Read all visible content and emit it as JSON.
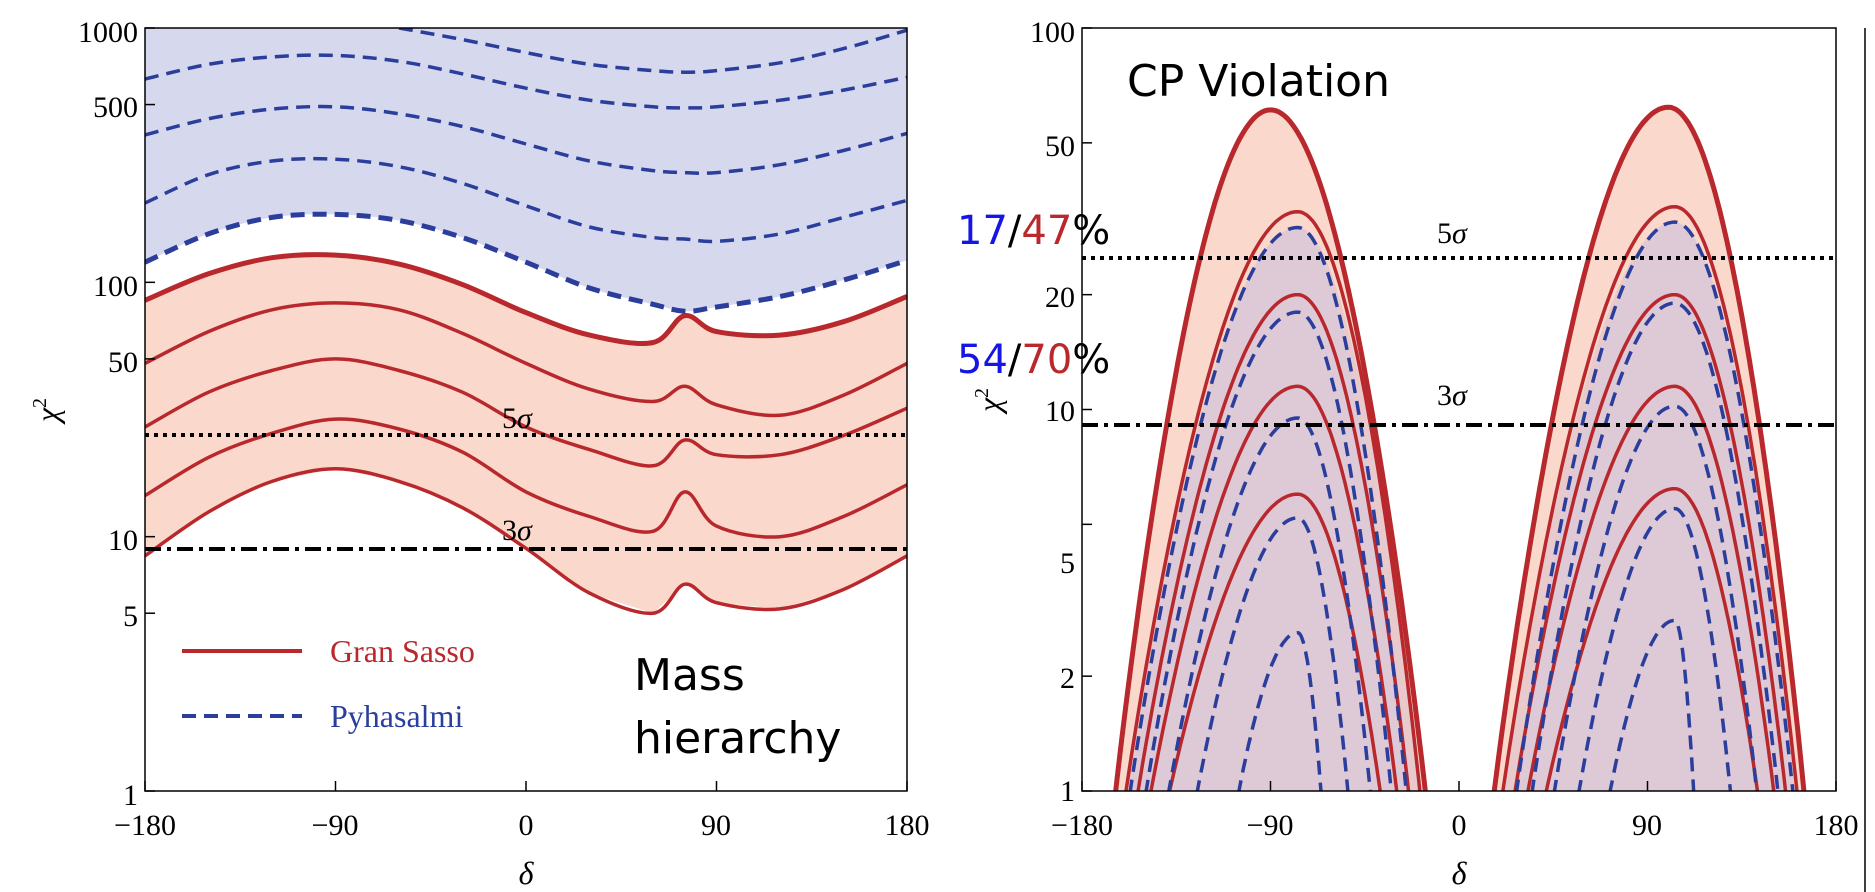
{
  "colors": {
    "red": "#B8282C",
    "blue": "#2B3E9C",
    "red_fill": "#FAD8CB",
    "blue_fill": "#D6D9EE",
    "overlap_fill": "#D9C0D0",
    "pct_blue": "#1515E6",
    "pct_red": "#B8282C"
  },
  "annotations": {
    "mass_hierarchy_line1": "Mass",
    "mass_hierarchy_line2": "hierarchy",
    "cp_violation": "CP Violation",
    "pct_top_blue": "17",
    "pct_top_slash": "/",
    "pct_top_red": "47",
    "pct_top_sign": "%",
    "pct_mid_blue": "54",
    "pct_mid_slash": "/",
    "pct_mid_red": "70",
    "pct_mid_sign": "%"
  },
  "chart_data": [
    {
      "type": "line",
      "subtitle_note": "Mass hierarchy",
      "xlabel": "δ",
      "ylabel": "χ²",
      "xlim": [
        -180,
        180
      ],
      "ylim": [
        1,
        1000
      ],
      "yscale": "log",
      "x_ticks": [
        "−180",
        "−90",
        "0",
        "90",
        "180"
      ],
      "y_ticks": [
        "1",
        "5",
        "10",
        "50",
        "100",
        "500",
        "1000"
      ],
      "legend": {
        "placement": "bottom-left",
        "entries": [
          {
            "label": "Gran Sasso",
            "style": "solid",
            "color": "#B8282C"
          },
          {
            "label": "Pyhasalmi",
            "style": "dashed",
            "color": "#2B3E9C"
          }
        ]
      },
      "reference_lines": [
        {
          "label": "5σ",
          "y": 25,
          "style": "dotted"
        },
        {
          "label": "3σ",
          "y": 9,
          "style": "dash-dot"
        }
      ],
      "x": [
        -180,
        -150,
        -120,
        -90,
        -60,
        -30,
        0,
        30,
        60,
        75,
        90,
        120,
        150,
        180
      ],
      "series": [
        {
          "name": "Gran Sasso",
          "style": "solid",
          "values": [
            85,
            108,
            125,
            128,
            118,
            98,
            76,
            62,
            58,
            74,
            64,
            62,
            70,
            88
          ]
        },
        {
          "name": "Gran Sasso",
          "style": "solid",
          "values": [
            48,
            64,
            78,
            83,
            78,
            63,
            48,
            38,
            34,
            39,
            33,
            30,
            36,
            48
          ]
        },
        {
          "name": "Gran Sasso",
          "style": "solid",
          "values": [
            27,
            37,
            45,
            50,
            45,
            37,
            27,
            22,
            19,
            24,
            21,
            21,
            25,
            32
          ]
        },
        {
          "name": "Gran Sasso",
          "style": "solid",
          "values": [
            14.5,
            20.5,
            25.5,
            29,
            26.5,
            21.5,
            15,
            12,
            10.5,
            15,
            11,
            10,
            12,
            16
          ]
        },
        {
          "name": "Gran Sasso",
          "style": "solid",
          "values": [
            8.4,
            12.5,
            16.5,
            18.5,
            16.5,
            13,
            9,
            6,
            5,
            6.5,
            5.5,
            5.2,
            6.2,
            8.4
          ]
        },
        {
          "name": "Pyhasalmi",
          "style": "dashed",
          "values": [
            120,
            155,
            180,
            185,
            175,
            150,
            120,
            95,
            82,
            77,
            80,
            88,
            102,
            122
          ]
        },
        {
          "name": "Pyhasalmi",
          "style": "dashed",
          "values": [
            205,
            265,
            300,
            305,
            285,
            245,
            200,
            165,
            150,
            148,
            145,
            155,
            180,
            210
          ]
        },
        {
          "name": "Pyhasalmi",
          "style": "dashed",
          "values": [
            380,
            440,
            480,
            490,
            460,
            410,
            350,
            300,
            275,
            270,
            270,
            290,
            330,
            385
          ]
        },
        {
          "name": "Pyhasalmi",
          "style": "dashed",
          "values": [
            630,
            720,
            770,
            780,
            740,
            660,
            580,
            520,
            490,
            485,
            490,
            520,
            570,
            640
          ]
        },
        {
          "name": "Pyhasalmi",
          "style": "dashed",
          "values": [
            null,
            null,
            null,
            null,
            1000,
            900,
            800,
            720,
            680,
            670,
            680,
            730,
            830,
            980
          ]
        }
      ]
    },
    {
      "type": "line",
      "title": "CP Violation",
      "xlabel": "δ",
      "ylabel": "χ²",
      "xlim": [
        -180,
        180
      ],
      "ylim": [
        1,
        100
      ],
      "yscale": "log",
      "x_ticks": [
        "−180",
        "−90",
        "0",
        "90",
        "180"
      ],
      "y_ticks": [
        "1",
        "2",
        "5",
        "10",
        "20",
        "50",
        "100"
      ],
      "reference_lines": [
        {
          "label": "5σ",
          "y": 25,
          "style": "dotted"
        },
        {
          "label": "3σ",
          "y": 9,
          "style": "dash-dot"
        }
      ],
      "series": [
        {
          "name": "Gran Sasso",
          "style": "solid",
          "left_zero": [
            -170,
            -10
          ],
          "left_peak": [
            -90,
            61
          ],
          "right_zero": [
            10,
            170
          ],
          "right_peak": [
            100,
            62
          ]
        },
        {
          "name": "Gran Sasso",
          "style": "solid",
          "left_zero": [
            -167,
            -13
          ],
          "left_peak": [
            -77,
            33
          ],
          "right_zero": [
            13,
            167
          ],
          "right_peak": [
            103,
            34
          ]
        },
        {
          "name": "Gran Sasso",
          "style": "solid",
          "left_zero": [
            -162,
            -18
          ],
          "left_peak": [
            -77,
            20
          ],
          "right_zero": [
            18,
            162
          ],
          "right_peak": [
            103,
            20
          ]
        },
        {
          "name": "Gran Sasso",
          "style": "solid",
          "left_zero": [
            -157,
            -23
          ],
          "left_peak": [
            -77,
            11.5
          ],
          "right_zero": [
            23,
            157
          ],
          "right_peak": [
            103,
            11.5
          ]
        },
        {
          "name": "Gran Sasso",
          "style": "solid",
          "left_zero": [
            -150,
            -30
          ],
          "left_peak": [
            -77,
            6
          ],
          "right_zero": [
            30,
            150
          ],
          "right_peak": [
            103,
            6.2
          ]
        },
        {
          "name": "Pyhasalmi",
          "style": "dashed",
          "left_zero": [
            -165,
            -20
          ],
          "left_peak": [
            -77,
            30
          ],
          "right_zero": [
            20,
            165
          ],
          "right_peak": [
            103,
            31
          ]
        },
        {
          "name": "Pyhasalmi",
          "style": "dashed",
          "left_zero": [
            -158,
            -27
          ],
          "left_peak": [
            -77,
            18
          ],
          "right_zero": [
            27,
            158
          ],
          "right_peak": [
            103,
            19
          ]
        },
        {
          "name": "Pyhasalmi",
          "style": "dashed",
          "left_zero": [
            -148,
            -37
          ],
          "left_peak": [
            -77,
            9.5
          ],
          "right_zero": [
            37,
            148
          ],
          "right_peak": [
            103,
            10.2
          ]
        },
        {
          "name": "Pyhasalmi",
          "style": "dashed",
          "left_zero": [
            -135,
            -48
          ],
          "left_peak": [
            -77,
            5.2
          ],
          "right_zero": [
            48,
            135
          ],
          "right_peak": [
            103,
            5.5
          ]
        },
        {
          "name": "Pyhasalmi",
          "style": "dashed",
          "left_zero": [
            -115,
            -62
          ],
          "left_peak": [
            -77,
            2.6
          ],
          "right_zero": [
            62,
            115
          ],
          "right_peak": [
            103,
            2.8
          ]
        }
      ]
    }
  ]
}
